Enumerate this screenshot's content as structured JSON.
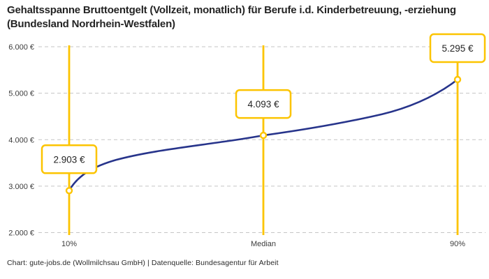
{
  "header": {
    "title": "Gehaltsspanne Bruttoentgelt (Vollzeit, monatlich) für Berufe i.d. Kinderbetreuung, -erziehung (Bundesland Nordrhein-Westfalen)"
  },
  "footer": {
    "credit": "Chart: gute-jobs.de (Wollmilchsau GmbH) | Datenquelle: Bundesagentur für Arbeit"
  },
  "chart_data": {
    "type": "line",
    "title": "Gehaltsspanne Bruttoentgelt (Vollzeit, monatlich) für Berufe i.d. Kinderbetreuung, -erziehung (Bundesland Nordrhein-Westfalen)",
    "categories": [
      "10%",
      "Median",
      "90%"
    ],
    "values": [
      2903,
      4093,
      5295
    ],
    "value_labels": [
      "2.903 €",
      "4.093 €",
      "5.295 €"
    ],
    "y_ticks": [
      {
        "value": 2000,
        "label": "2.000 €"
      },
      {
        "value": 3000,
        "label": "3.000 €"
      },
      {
        "value": 4000,
        "label": "4.000 €"
      },
      {
        "value": 5000,
        "label": "5.000 €"
      },
      {
        "value": 6000,
        "label": "6.000 €"
      }
    ],
    "ylim": [
      2000,
      6000
    ],
    "xlabel": "",
    "ylabel": "",
    "grid": "horizontal-dashed",
    "legend": "none",
    "colors": {
      "line": "#27348B",
      "highlight": "#FCC400",
      "grid": "#C5C5C5",
      "text": "#242424",
      "tick_text": "#3C3C3C"
    }
  }
}
